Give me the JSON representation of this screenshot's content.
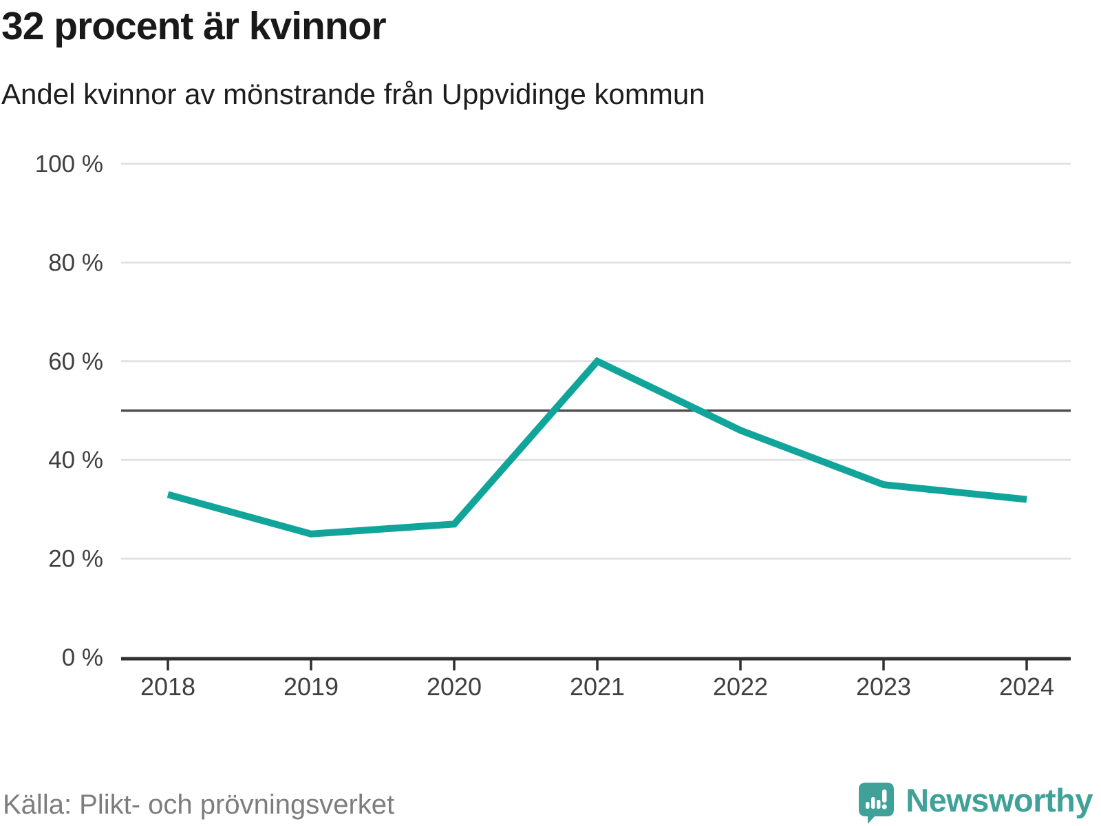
{
  "chart_data": {
    "type": "line",
    "title": "32 procent är kvinnor",
    "subtitle": "Andel kvinnor av mönstrande från Uppvidinge kommun",
    "categories": [
      "2018",
      "2019",
      "2020",
      "2021",
      "2022",
      "2023",
      "2024"
    ],
    "values": [
      33,
      25,
      27,
      60,
      46,
      35,
      32
    ],
    "unit": "%",
    "ylim": [
      0,
      100
    ],
    "yticks": [
      0,
      20,
      40,
      60,
      80,
      100
    ],
    "ytick_labels": [
      "0 %",
      "20 %",
      "40 %",
      "60 %",
      "80 %",
      "100 %"
    ],
    "reference_line": 50,
    "grid": "horizontal",
    "legend": "none"
  },
  "footer": {
    "source": "Källa: Plikt- och prövningsverket",
    "brand": "Newsworthy"
  },
  "colors": {
    "accent": "#11a49a",
    "brand_teal": "#3fa198",
    "title_text": "#191919",
    "source_text": "#7d7d7d",
    "axis_text": "#3f3f3f",
    "gridline": "#e2e2e2",
    "reference_line": "#4d4d4d",
    "axis_line": "#2f2f2f"
  }
}
